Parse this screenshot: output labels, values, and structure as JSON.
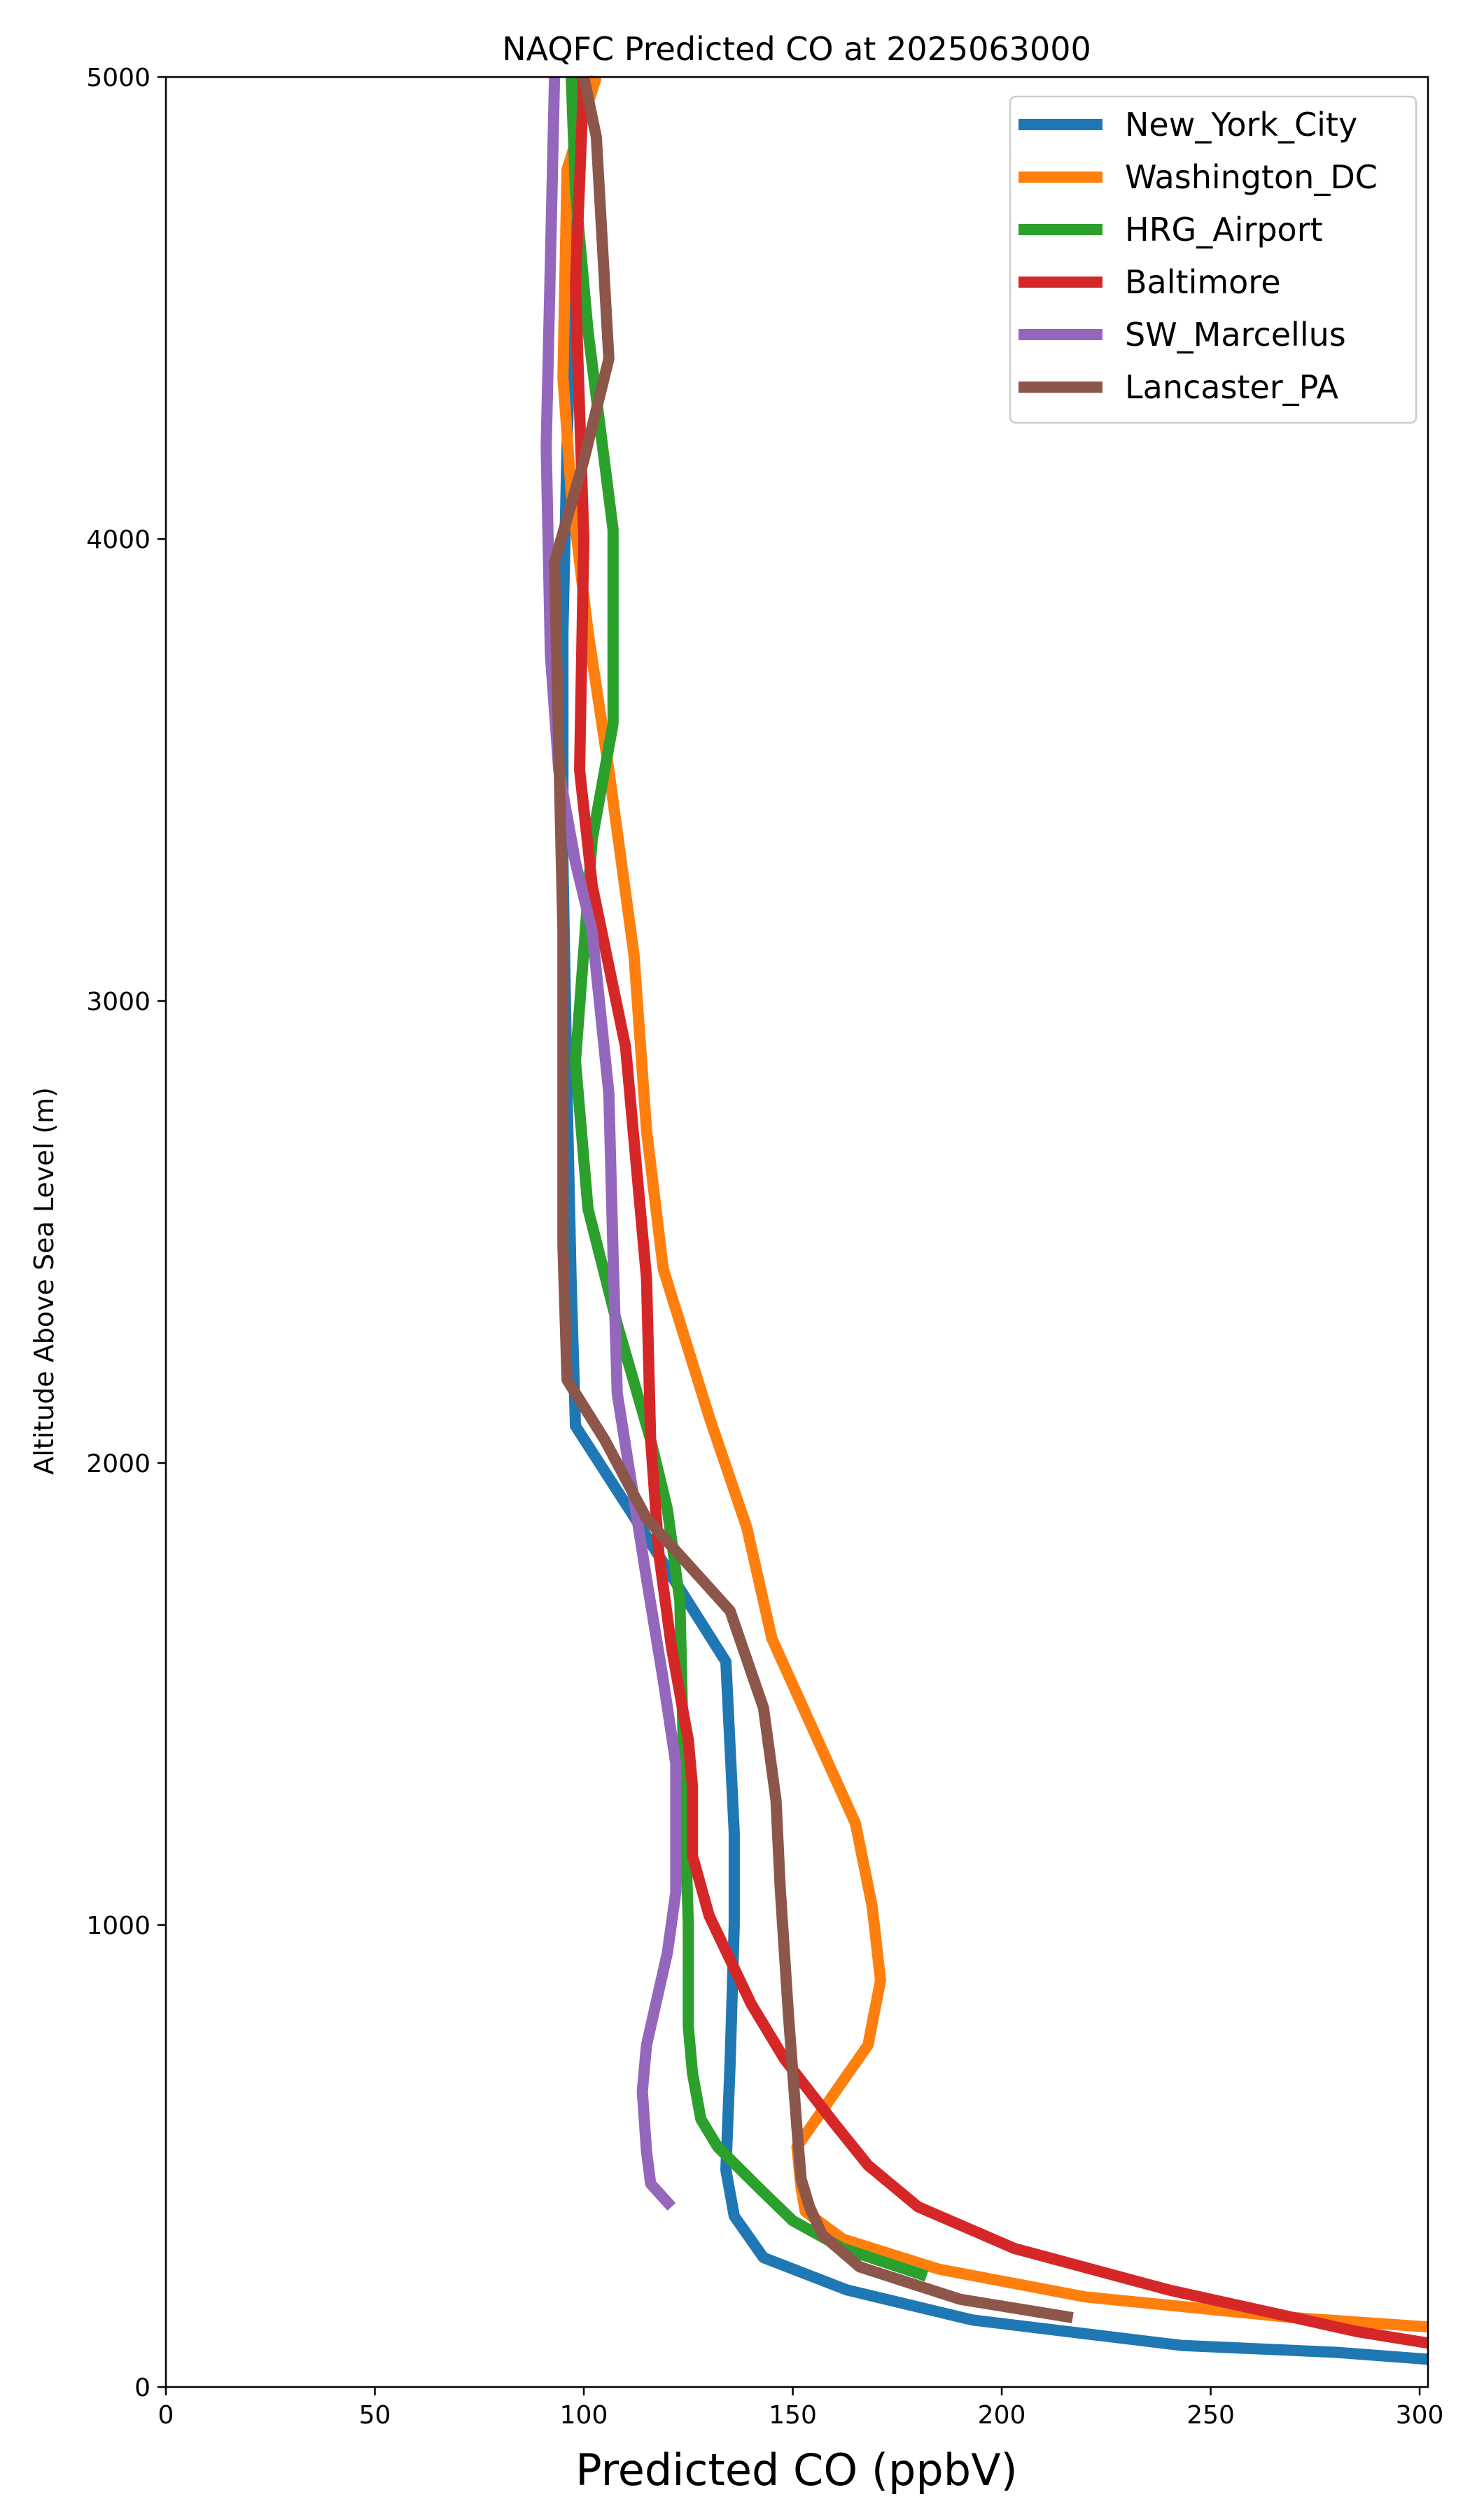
{
  "chart_data": {
    "type": "line",
    "title": "NAQFC Predicted CO at 2025063000",
    "xlabel": "Predicted CO (ppbV)",
    "ylabel": "Altitude Above Sea Level (m)",
    "xlim": [
      0,
      302
    ],
    "ylim": [
      0,
      5000
    ],
    "xticks": [
      0,
      50,
      100,
      150,
      200,
      250,
      300
    ],
    "yticks": [
      0,
      1000,
      2000,
      3000,
      4000,
      5000
    ],
    "grid": false,
    "legend_position": "top-right",
    "series": [
      {
        "name": "New_York_City",
        "color": "#1f77b4",
        "points": [
          [
            302,
            60
          ],
          [
            280,
            75
          ],
          [
            243,
            90
          ],
          [
            193,
            145
          ],
          [
            163,
            210
          ],
          [
            143,
            280
          ],
          [
            136,
            370
          ],
          [
            134,
            470
          ],
          [
            135,
            700
          ],
          [
            136,
            1000
          ],
          [
            136,
            1200
          ],
          [
            134,
            1570
          ],
          [
            113,
            1870
          ],
          [
            98,
            2080
          ],
          [
            97,
            2380
          ],
          [
            96,
            2800
          ],
          [
            95,
            3300
          ],
          [
            95,
            3800
          ],
          [
            96,
            4200
          ],
          [
            98,
            4800
          ],
          [
            99,
            5000
          ]
        ]
      },
      {
        "name": "Washington_DC",
        "color": "#ff7f0e",
        "points": [
          [
            302,
            130
          ],
          [
            270,
            150
          ],
          [
            220,
            195
          ],
          [
            185,
            255
          ],
          [
            162,
            320
          ],
          [
            153,
            380
          ],
          [
            152,
            430
          ],
          [
            151,
            520
          ],
          [
            168,
            740
          ],
          [
            171,
            880
          ],
          [
            169,
            1040
          ],
          [
            165,
            1220
          ],
          [
            145,
            1620
          ],
          [
            139,
            1860
          ],
          [
            130,
            2100
          ],
          [
            119,
            2420
          ],
          [
            115,
            2720
          ],
          [
            112,
            3100
          ],
          [
            106,
            3500
          ],
          [
            101,
            3800
          ],
          [
            97,
            4100
          ],
          [
            95,
            4350
          ],
          [
            96,
            4800
          ],
          [
            103,
            5000
          ]
        ]
      },
      {
        "name": "HRG_Airport",
        "color": "#2ca02c",
        "points": [
          [
            182,
            240
          ],
          [
            162,
            300
          ],
          [
            150,
            360
          ],
          [
            142,
            430
          ],
          [
            132,
            520
          ],
          [
            128,
            580
          ],
          [
            126,
            680
          ],
          [
            125,
            780
          ],
          [
            125,
            1000
          ],
          [
            124,
            1300
          ],
          [
            123,
            1700
          ],
          [
            120,
            1900
          ],
          [
            116,
            2050
          ],
          [
            108,
            2300
          ],
          [
            101,
            2550
          ],
          [
            98,
            2870
          ],
          [
            102,
            3350
          ],
          [
            107,
            3600
          ],
          [
            107,
            4020
          ],
          [
            101,
            4450
          ],
          [
            98,
            4750
          ],
          [
            97,
            5000
          ]
        ]
      },
      {
        "name": "Baltimore",
        "color": "#d62728",
        "points": [
          [
            302,
            95
          ],
          [
            285,
            120
          ],
          [
            240,
            210
          ],
          [
            203,
            300
          ],
          [
            180,
            390
          ],
          [
            168,
            480
          ],
          [
            160,
            570
          ],
          [
            148,
            710
          ],
          [
            140,
            830
          ],
          [
            130,
            1020
          ],
          [
            126,
            1150
          ],
          [
            126,
            1300
          ],
          [
            125,
            1400
          ],
          [
            121,
            1600
          ],
          [
            118,
            1800
          ],
          [
            116,
            2050
          ],
          [
            115,
            2400
          ],
          [
            110,
            2900
          ],
          [
            102,
            3250
          ],
          [
            99,
            3500
          ],
          [
            100,
            4000
          ],
          [
            98,
            4550
          ],
          [
            100,
            5000
          ]
        ]
      },
      {
        "name": "SW_Marcellus",
        "color": "#9467bd",
        "points": [
          [
            121,
            390
          ],
          [
            116,
            440
          ],
          [
            115,
            510
          ],
          [
            114,
            640
          ],
          [
            115,
            740
          ],
          [
            120,
            940
          ],
          [
            122,
            1070
          ],
          [
            122,
            1180
          ],
          [
            122,
            1350
          ],
          [
            119,
            1530
          ],
          [
            115,
            1750
          ],
          [
            108,
            2150
          ],
          [
            107,
            2450
          ],
          [
            106,
            2800
          ],
          [
            102,
            3150
          ],
          [
            98,
            3300
          ],
          [
            94,
            3500
          ],
          [
            92,
            3750
          ],
          [
            91,
            4200
          ],
          [
            92,
            4600
          ],
          [
            93,
            5000
          ]
        ]
      },
      {
        "name": "Lancaster_PA",
        "color": "#8c564b",
        "points": [
          [
            217,
            150
          ],
          [
            190,
            190
          ],
          [
            166,
            260
          ],
          [
            157,
            330
          ],
          [
            154,
            390
          ],
          [
            152,
            450
          ],
          [
            151,
            560
          ],
          [
            149,
            800
          ],
          [
            147,
            1080
          ],
          [
            146,
            1270
          ],
          [
            143,
            1470
          ],
          [
            135,
            1680
          ],
          [
            115,
            1880
          ],
          [
            105,
            2050
          ],
          [
            96,
            2180
          ],
          [
            95,
            2470
          ],
          [
            95,
            2800
          ],
          [
            95,
            3150
          ],
          [
            94,
            3550
          ],
          [
            93,
            3950
          ],
          [
            100,
            4170
          ],
          [
            106,
            4390
          ],
          [
            103,
            4870
          ],
          [
            100,
            5000
          ]
        ]
      }
    ]
  }
}
